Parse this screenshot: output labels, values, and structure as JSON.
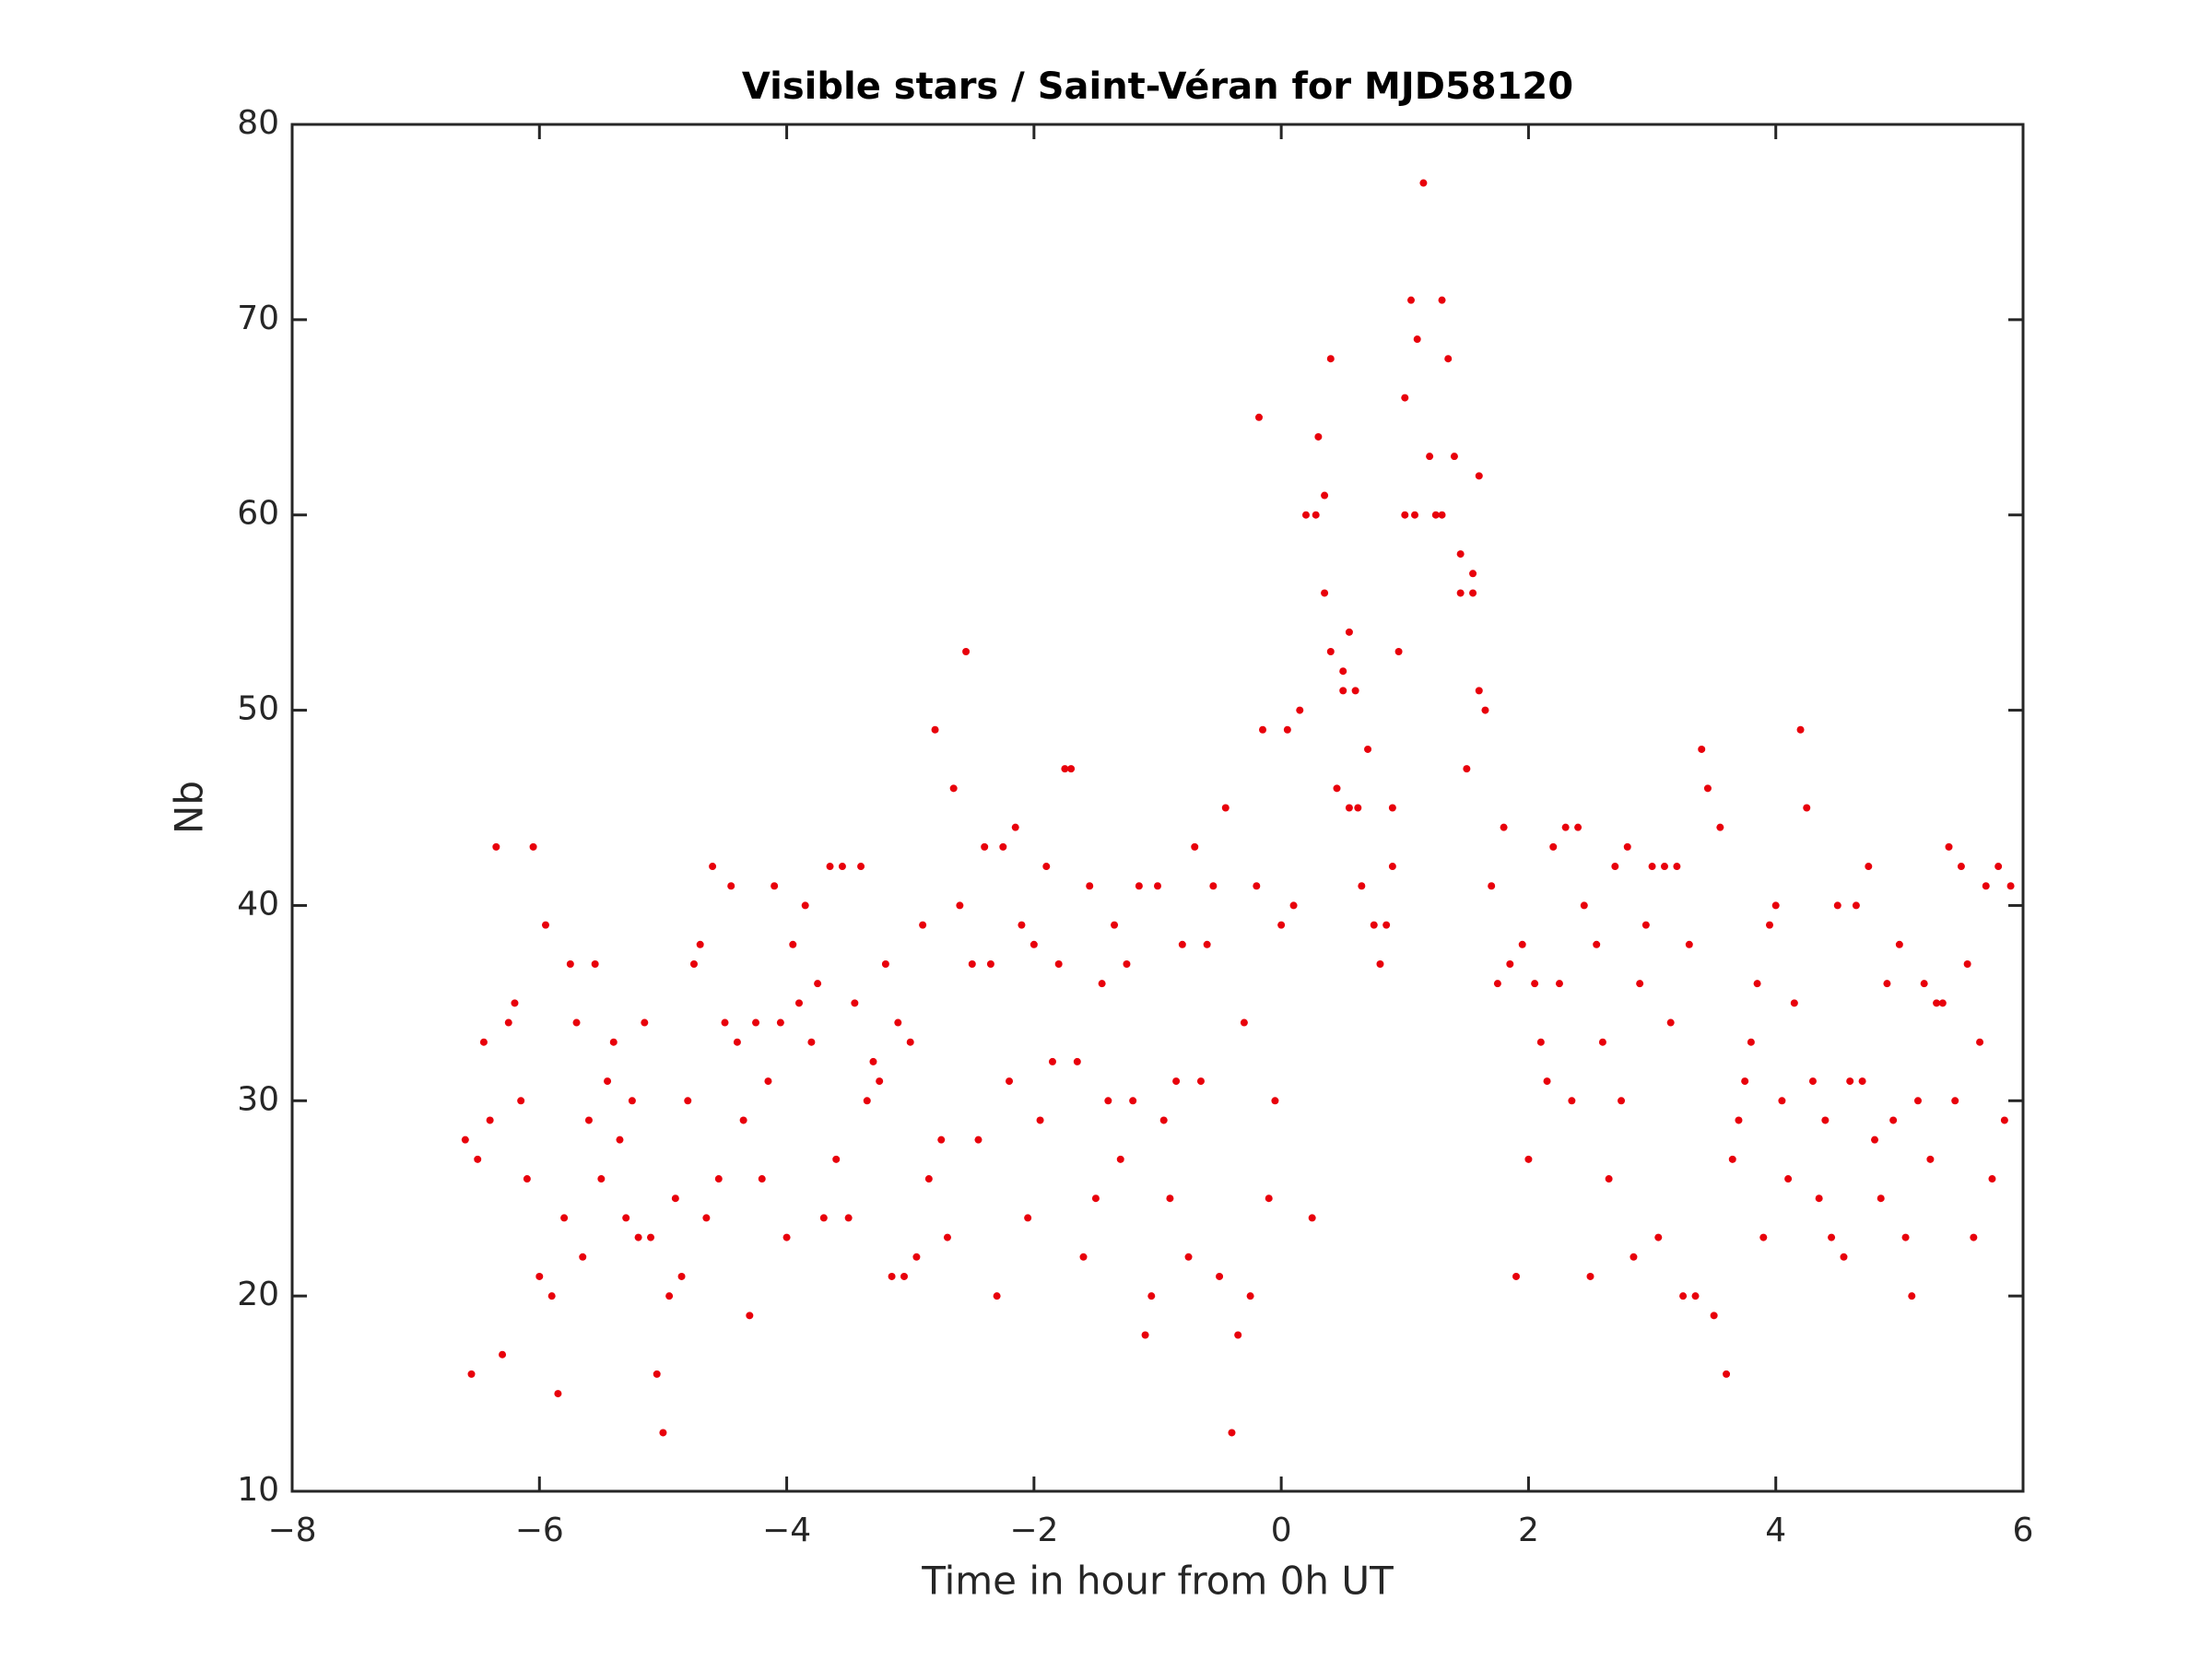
{
  "chart_data": {
    "type": "scatter",
    "title": "Visible stars / Saint-Véran for MJD58120",
    "xlabel": "Time in hour from 0h UT",
    "ylabel": "Nb",
    "color": "#e8000b",
    "xlim": [
      -8,
      6
    ],
    "ylim": [
      10,
      80
    ],
    "xticks": [
      {
        "value": -8,
        "label": "−8"
      },
      {
        "value": -6,
        "label": "−6"
      },
      {
        "value": -4,
        "label": "−4"
      },
      {
        "value": -2,
        "label": "−2"
      },
      0,
      2,
      4,
      6
    ],
    "yticks": [
      10,
      20,
      30,
      40,
      50,
      60,
      70,
      80
    ],
    "grid": false,
    "x": [
      -6.6,
      -6.55,
      -6.5,
      -6.45,
      -6.4,
      -6.35,
      -6.3,
      -6.25,
      -6.2,
      -6.15,
      -6.1,
      -6.05,
      -6.0,
      -5.95,
      -5.9,
      -5.85,
      -5.8,
      -5.75,
      -5.7,
      -5.65,
      -5.6,
      -5.55,
      -5.5,
      -5.45,
      -5.4,
      -5.35,
      -5.3,
      -5.25,
      -5.2,
      -5.15,
      -5.1,
      -5.05,
      -5.0,
      -4.95,
      -4.9,
      -4.85,
      -4.8,
      -4.75,
      -4.7,
      -4.65,
      -4.6,
      -4.55,
      -4.5,
      -4.45,
      -4.4,
      -4.35,
      -4.3,
      -4.25,
      -4.2,
      -4.15,
      -4.1,
      -4.05,
      -4.0,
      -3.95,
      -3.9,
      -3.85,
      -3.8,
      -3.75,
      -3.7,
      -3.65,
      -3.6,
      -3.55,
      -3.5,
      -3.45,
      -3.4,
      -3.35,
      -3.3,
      -3.25,
      -3.2,
      -3.15,
      -3.1,
      -3.05,
      -3.0,
      -2.95,
      -2.9,
      -2.85,
      -2.8,
      -2.75,
      -2.7,
      -2.65,
      -2.6,
      -2.55,
      -2.5,
      -2.45,
      -2.4,
      -2.35,
      -2.3,
      -2.25,
      -2.2,
      -2.15,
      -2.1,
      -2.05,
      -2.0,
      -1.95,
      -1.9,
      -1.85,
      -1.8,
      -1.75,
      -1.7,
      -1.65,
      -1.6,
      -1.55,
      -1.5,
      -1.45,
      -1.4,
      -1.35,
      -1.3,
      -1.25,
      -1.2,
      -1.15,
      -1.1,
      -1.05,
      -1.0,
      -0.95,
      -0.9,
      -0.85,
      -0.8,
      -0.75,
      -0.7,
      -0.65,
      -0.6,
      -0.55,
      -0.5,
      -0.45,
      -0.4,
      -0.35,
      -0.3,
      -0.25,
      -0.2,
      -0.15,
      -0.1,
      -0.05,
      0.0,
      0.05,
      0.1,
      0.15,
      0.2,
      0.25,
      0.3,
      0.35,
      0.4,
      0.45,
      0.5,
      0.55,
      0.6,
      0.65,
      0.7,
      0.75,
      0.8,
      0.85,
      0.9,
      0.95,
      1.0,
      1.05,
      1.1,
      1.15,
      1.2,
      1.25,
      1.3,
      1.35,
      1.4,
      1.45,
      1.5,
      1.55,
      1.6,
      1.65,
      1.7,
      1.75,
      1.8,
      1.85,
      1.9,
      1.95,
      2.0,
      2.05,
      2.1,
      2.15,
      2.2,
      2.25,
      2.3,
      2.35,
      2.4,
      2.45,
      2.5,
      2.55,
      2.6,
      2.65,
      2.7,
      2.75,
      2.8,
      2.85,
      2.9,
      2.95,
      3.0,
      3.05,
      3.1,
      3.15,
      3.2,
      3.25,
      3.3,
      3.35,
      3.4,
      3.45,
      3.5,
      3.55,
      3.6,
      3.65,
      3.7,
      3.75,
      3.8,
      3.85,
      3.9,
      3.95,
      4.0,
      4.05,
      4.1,
      4.15,
      4.2,
      4.25,
      4.3,
      4.35,
      4.4,
      4.45,
      4.5,
      4.55,
      4.6,
      4.65,
      4.7,
      4.75,
      4.8,
      4.85,
      4.9,
      4.95,
      5.0,
      5.05,
      5.1,
      5.15,
      5.2,
      5.25,
      5.3,
      5.35,
      5.4,
      5.45,
      5.5,
      5.55,
      5.6,
      5.65,
      5.7,
      5.75,
      5.8,
      5.85,
      5.9,
      0.35,
      0.4,
      0.28,
      0.5,
      0.55,
      0.62,
      1.0,
      1.08,
      1.3,
      1.45,
      1.55,
      1.6,
      0.9,
      -0.18
    ],
    "values": [
      28,
      16,
      27,
      33,
      29,
      43,
      17,
      34,
      35,
      30,
      26,
      43,
      21,
      39,
      20,
      15,
      24,
      37,
      34,
      22,
      29,
      37,
      26,
      31,
      33,
      28,
      24,
      30,
      23,
      34,
      23,
      16,
      13,
      20,
      25,
      21,
      30,
      37,
      38,
      24,
      42,
      26,
      34,
      41,
      33,
      29,
      19,
      34,
      26,
      31,
      41,
      34,
      23,
      38,
      35,
      40,
      33,
      36,
      24,
      42,
      27,
      42,
      24,
      35,
      42,
      30,
      32,
      31,
      37,
      21,
      34,
      21,
      33,
      22,
      39,
      26,
      49,
      28,
      23,
      46,
      40,
      53,
      37,
      28,
      43,
      37,
      20,
      43,
      31,
      44,
      39,
      24,
      38,
      29,
      42,
      32,
      37,
      47,
      47,
      32,
      22,
      41,
      25,
      36,
      30,
      39,
      27,
      37,
      30,
      41,
      18,
      20,
      41,
      29,
      25,
      31,
      38,
      22,
      43,
      31,
      38,
      41,
      21,
      45,
      13,
      18,
      34,
      20,
      41,
      49,
      25,
      30,
      39,
      49,
      40,
      50,
      60,
      24,
      64,
      56,
      53,
      46,
      52,
      45,
      51,
      41,
      48,
      39,
      37,
      39,
      45,
      53,
      66,
      71,
      69,
      77,
      63,
      60,
      71,
      68,
      63,
      58,
      47,
      56,
      62,
      50,
      41,
      36,
      44,
      37,
      21,
      38,
      27,
      36,
      33,
      31,
      43,
      36,
      44,
      30,
      44,
      40,
      21,
      38,
      33,
      26,
      42,
      30,
      43,
      22,
      36,
      39,
      42,
      23,
      42,
      34,
      42,
      20,
      38,
      20,
      48,
      46,
      19,
      44,
      16,
      27,
      29,
      31,
      33,
      36,
      23,
      39,
      40,
      30,
      26,
      35,
      49,
      45,
      31,
      25,
      29,
      23,
      40,
      22,
      31,
      40,
      31,
      42,
      28,
      25,
      36,
      29,
      38,
      23,
      20,
      30,
      36,
      27,
      35,
      35,
      43,
      30,
      42,
      37,
      23,
      33,
      41,
      26,
      42,
      29,
      41,
      61,
      68,
      60,
      51,
      54,
      45,
      60,
      60,
      60,
      56,
      57,
      51,
      42,
      65
    ]
  }
}
